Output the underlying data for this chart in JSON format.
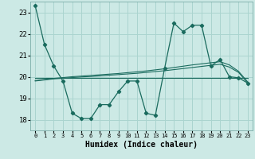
{
  "xlabel": "Humidex (Indice chaleur)",
  "background_color": "#cce9e5",
  "grid_color": "#aad4cf",
  "line_color": "#1a6b5e",
  "x_values": [
    0,
    1,
    2,
    3,
    4,
    5,
    6,
    7,
    8,
    9,
    10,
    11,
    12,
    13,
    14,
    15,
    16,
    17,
    18,
    19,
    20,
    21,
    22,
    23
  ],
  "y_main": [
    23.3,
    21.5,
    20.5,
    19.8,
    18.3,
    18.05,
    18.05,
    18.7,
    18.7,
    19.3,
    19.8,
    19.8,
    18.3,
    18.2,
    20.4,
    22.5,
    22.1,
    22.4,
    22.4,
    20.5,
    20.8,
    20.0,
    19.95,
    19.7
  ],
  "y_trend_flat": [
    19.95,
    19.95,
    19.95,
    19.95,
    19.95,
    19.95,
    19.95,
    19.95,
    19.95,
    19.95,
    19.95,
    19.95,
    19.95,
    19.95,
    19.95,
    19.95,
    19.95,
    19.95,
    19.95,
    19.95,
    19.95,
    19.95,
    19.95,
    19.95
  ],
  "y_trend_up1": [
    19.8,
    19.85,
    19.9,
    19.93,
    19.96,
    19.99,
    20.01,
    20.04,
    20.07,
    20.1,
    20.13,
    20.16,
    20.2,
    20.24,
    20.28,
    20.33,
    20.38,
    20.43,
    20.48,
    20.53,
    20.58,
    20.45,
    20.2,
    19.7
  ],
  "y_trend_up2": [
    19.82,
    19.87,
    19.92,
    19.96,
    20.0,
    20.03,
    20.06,
    20.09,
    20.12,
    20.15,
    20.19,
    20.23,
    20.27,
    20.32,
    20.37,
    20.43,
    20.49,
    20.55,
    20.6,
    20.65,
    20.7,
    20.55,
    20.25,
    19.75
  ],
  "ylim": [
    17.5,
    23.5
  ],
  "yticks": [
    18,
    19,
    20,
    21,
    22,
    23
  ],
  "xticks": [
    0,
    1,
    2,
    3,
    4,
    5,
    6,
    7,
    8,
    9,
    10,
    11,
    12,
    13,
    14,
    15,
    16,
    17,
    18,
    19,
    20,
    21,
    22,
    23
  ]
}
